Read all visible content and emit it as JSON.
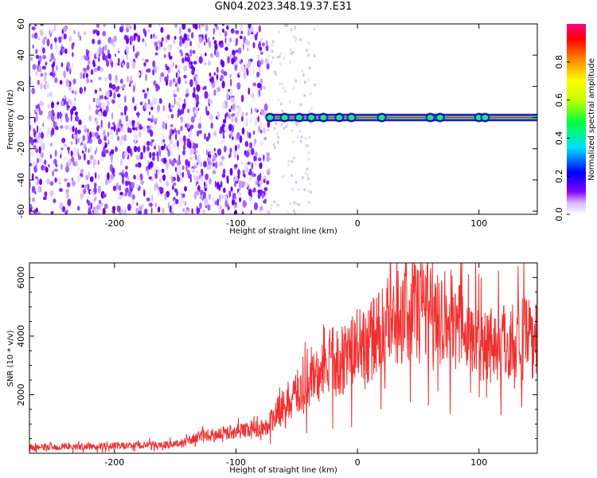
{
  "title": "GN04.2023.348.19.37.E31",
  "chart_data": [
    {
      "type": "heatmap",
      "title": "GN04.2023.348.19.37.E31",
      "xlabel": "Height of straight line (km)",
      "ylabel": "Frequency (Hz)",
      "xlim": [
        -270,
        148
      ],
      "ylim": [
        -62,
        60
      ],
      "x_ticks": [
        "-200",
        "-100",
        "0",
        "100"
      ],
      "y_ticks": [
        "60",
        "40",
        "20",
        "0",
        "-20",
        "-40",
        "-60"
      ],
      "noise_region_x": [
        -270,
        -75
      ],
      "signal_onset_x": -75,
      "signal_frequency_hz": 0,
      "colorbar": {
        "label": "Normalized spectral amplitude",
        "range": [
          0,
          1
        ],
        "ticks": [
          "0.0",
          "0.2",
          "0.4",
          "0.6",
          "0.8"
        ],
        "colors": [
          "#ffffff",
          "#d9b8ff",
          "#8000ff",
          "#0000ff",
          "#00e0ff",
          "#00ff40",
          "#c0ff00",
          "#ffff00",
          "#ff8000",
          "#ff0000",
          "#ff0080"
        ]
      },
      "grid": false
    },
    {
      "type": "line",
      "xlabel": "Height of straight line (km)",
      "ylabel": "SNR (10 * v/v)",
      "xlim": [
        -270,
        148
      ],
      "ylim": [
        0,
        6500
      ],
      "x_ticks": [
        "-200",
        "-100",
        "0",
        "100"
      ],
      "y_ticks": [
        "6000",
        "4000",
        "2000"
      ],
      "line_color": "#f03030",
      "envelope": {
        "x": [
          -270,
          -200,
          -150,
          -130,
          -110,
          -90,
          -75,
          -65,
          -55,
          -45,
          -35,
          -20,
          -5,
          10,
          25,
          40,
          55,
          65,
          75,
          90,
          105,
          120,
          135,
          148
        ],
        "y": [
          200,
          250,
          300,
          550,
          700,
          800,
          900,
          1400,
          1900,
          2200,
          2600,
          3000,
          3400,
          3800,
          4400,
          4900,
          5100,
          5000,
          4600,
          4100,
          3800,
          3800,
          3900,
          3900
        ]
      },
      "grid": false
    }
  ]
}
